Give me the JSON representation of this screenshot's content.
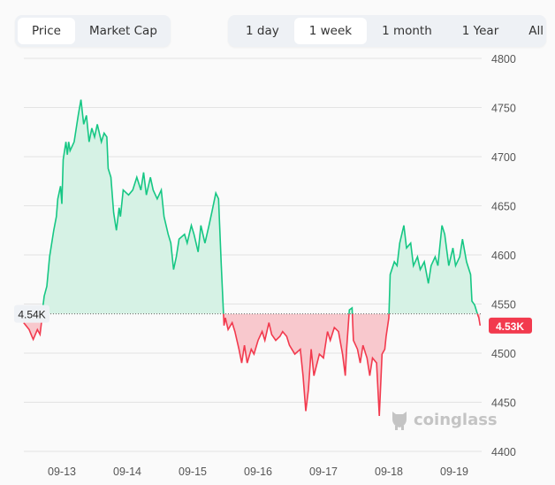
{
  "toggles": {
    "metric": [
      {
        "label": "Price",
        "active": true
      },
      {
        "label": "Market Cap",
        "active": false
      }
    ],
    "range": [
      {
        "label": "1 day",
        "active": false
      },
      {
        "label": "1 week",
        "active": true
      },
      {
        "label": "1 month",
        "active": false
      },
      {
        "label": "1 Year",
        "active": false
      },
      {
        "label": "All",
        "active": false
      }
    ]
  },
  "watermark": {
    "text": "coinglass",
    "icon": "coinglass-logo-icon"
  },
  "colors": {
    "up": "#16c784",
    "up_fill": "#d6f2e5",
    "down": "#f23a4e",
    "down_fill": "#f8c8cd",
    "grid": "#e3e3e3"
  },
  "chart_data": {
    "type": "area",
    "baseline": {
      "value": 4540,
      "label": "4.54K"
    },
    "current": {
      "value": 4528,
      "label": "4.53K"
    },
    "ylim": [
      4400,
      4800
    ],
    "yticks": [
      4400,
      4450,
      4500,
      4550,
      4600,
      4650,
      4700,
      4750,
      4800
    ],
    "xticks": [
      "09-13",
      "09-14",
      "09-15",
      "09-16",
      "09-17",
      "09-18",
      "09-19"
    ],
    "grid": true,
    "points": [
      [
        "09-12 10:00",
        4531
      ],
      [
        "09-12 12:00",
        4524
      ],
      [
        "09-12 13:00",
        4517
      ],
      [
        "09-12 13:30",
        4514
      ],
      [
        "09-12 15:00",
        4524
      ],
      [
        "09-12 16:00",
        4519
      ],
      [
        "09-12 16:30",
        4531
      ],
      [
        "09-12 17:00",
        4546
      ],
      [
        "09-12 17:30",
        4558
      ],
      [
        "09-12 18:30",
        4568
      ],
      [
        "09-12 19:30",
        4598
      ],
      [
        "09-12 21:00",
        4625
      ],
      [
        "09-12 22:00",
        4639
      ],
      [
        "09-12 22:30",
        4657
      ],
      [
        "09-12 23:30",
        4670
      ],
      [
        "09-13 00:00",
        4652
      ],
      [
        "09-13 00:30",
        4697
      ],
      [
        "09-13 01:30",
        4715
      ],
      [
        "09-13 02:00",
        4702
      ],
      [
        "09-13 02:30",
        4715
      ],
      [
        "09-13 03:00",
        4706
      ],
      [
        "09-13 04:30",
        4715
      ],
      [
        "09-13 06:00",
        4742
      ],
      [
        "09-13 07:00",
        4758
      ],
      [
        "09-13 08:00",
        4733
      ],
      [
        "09-13 09:00",
        4742
      ],
      [
        "09-13 10:00",
        4715
      ],
      [
        "09-13 11:00",
        4729
      ],
      [
        "09-13 12:00",
        4720
      ],
      [
        "09-13 13:00",
        4733
      ],
      [
        "09-13 14:30",
        4715
      ],
      [
        "09-13 15:30",
        4724
      ],
      [
        "09-13 16:30",
        4720
      ],
      [
        "09-13 17:00",
        4688
      ],
      [
        "09-13 18:00",
        4679
      ],
      [
        "09-13 19:00",
        4643
      ],
      [
        "09-13 20:00",
        4625
      ],
      [
        "09-13 21:00",
        4648
      ],
      [
        "09-13 21:30",
        4639
      ],
      [
        "09-13 22:30",
        4666
      ],
      [
        "09-14 00:30",
        4661
      ],
      [
        "09-14 02:00",
        4666
      ],
      [
        "09-14 03:30",
        4679
      ],
      [
        "09-14 05:00",
        4666
      ],
      [
        "09-14 06:00",
        4684
      ],
      [
        "09-14 07:00",
        4661
      ],
      [
        "09-14 08:30",
        4679
      ],
      [
        "09-14 09:30",
        4666
      ],
      [
        "09-14 11:00",
        4657
      ],
      [
        "09-14 12:30",
        4666
      ],
      [
        "09-14 13:30",
        4639
      ],
      [
        "09-14 15:00",
        4621
      ],
      [
        "09-14 16:00",
        4612
      ],
      [
        "09-14 17:00",
        4585
      ],
      [
        "09-14 18:00",
        4598
      ],
      [
        "09-14 19:00",
        4616
      ],
      [
        "09-14 21:00",
        4621
      ],
      [
        "09-14 22:00",
        4612
      ],
      [
        "09-14 23:30",
        4630
      ],
      [
        "09-15 00:30",
        4621
      ],
      [
        "09-15 02:00",
        4603
      ],
      [
        "09-15 03:00",
        4630
      ],
      [
        "09-15 04:30",
        4612
      ],
      [
        "09-15 06:00",
        4630
      ],
      [
        "09-15 07:00",
        4643
      ],
      [
        "09-15 08:30",
        4663
      ],
      [
        "09-15 09:30",
        4657
      ],
      [
        "09-15 10:30",
        4589
      ],
      [
        "09-15 11:30",
        4528
      ],
      [
        "09-15 12:00",
        4536
      ],
      [
        "09-15 13:00",
        4524
      ],
      [
        "09-15 14:30",
        4531
      ],
      [
        "09-15 15:30",
        4522
      ],
      [
        "09-15 17:00",
        4504
      ],
      [
        "09-15 18:00",
        4490
      ],
      [
        "09-15 19:00",
        4508
      ],
      [
        "09-15 20:00",
        4490
      ],
      [
        "09-15 21:30",
        4504
      ],
      [
        "09-15 22:30",
        4499
      ],
      [
        "09-16 00:00",
        4513
      ],
      [
        "09-16 01:30",
        4522
      ],
      [
        "09-16 02:30",
        4513
      ],
      [
        "09-16 04:00",
        4531
      ],
      [
        "09-16 05:00",
        4519
      ],
      [
        "09-16 06:30",
        4513
      ],
      [
        "09-16 08:00",
        4517
      ],
      [
        "09-16 09:00",
        4522
      ],
      [
        "09-16 10:30",
        4517
      ],
      [
        "09-16 11:30",
        4508
      ],
      [
        "09-16 13:30",
        4499
      ],
      [
        "09-16 15:30",
        4504
      ],
      [
        "09-16 16:30",
        4477
      ],
      [
        "09-16 17:30",
        4441
      ],
      [
        "09-16 18:30",
        4463
      ],
      [
        "09-16 19:30",
        4504
      ],
      [
        "09-16 20:30",
        4477
      ],
      [
        "09-16 21:30",
        4488
      ],
      [
        "09-16 22:30",
        4499
      ],
      [
        "09-17 00:00",
        4495
      ],
      [
        "09-17 01:30",
        4522
      ],
      [
        "09-17 02:30",
        4513
      ],
      [
        "09-17 04:00",
        4526
      ],
      [
        "09-17 05:30",
        4522
      ],
      [
        "09-17 07:00",
        4499
      ],
      [
        "09-17 08:00",
        4477
      ],
      [
        "09-17 08:30",
        4504
      ],
      [
        "09-17 09:30",
        4544
      ],
      [
        "09-17 10:30",
        4546
      ],
      [
        "09-17 11:00",
        4513
      ],
      [
        "09-17 12:30",
        4504
      ],
      [
        "09-17 13:30",
        4490
      ],
      [
        "09-17 14:30",
        4508
      ],
      [
        "09-17 16:00",
        4495
      ],
      [
        "09-17 17:00",
        4477
      ],
      [
        "09-17 18:00",
        4495
      ],
      [
        "09-17 19:30",
        4490
      ],
      [
        "09-17 20:30",
        4436
      ],
      [
        "09-17 21:30",
        4499
      ],
      [
        "09-17 22:30",
        4504
      ],
      [
        "09-17 23:00",
        4517
      ],
      [
        "09-18 00:00",
        4536
      ],
      [
        "09-18 00:30",
        4580
      ],
      [
        "09-18 02:00",
        4593
      ],
      [
        "09-18 03:00",
        4589
      ],
      [
        "09-18 04:00",
        4612
      ],
      [
        "09-18 05:30",
        4630
      ],
      [
        "09-18 06:30",
        4607
      ],
      [
        "09-18 08:00",
        4612
      ],
      [
        "09-18 09:00",
        4589
      ],
      [
        "09-18 10:30",
        4598
      ],
      [
        "09-18 11:30",
        4585
      ],
      [
        "09-18 13:00",
        4593
      ],
      [
        "09-18 14:30",
        4571
      ],
      [
        "09-18 15:30",
        4589
      ],
      [
        "09-18 17:00",
        4598
      ],
      [
        "09-18 18:00",
        4589
      ],
      [
        "09-18 19:30",
        4630
      ],
      [
        "09-18 20:30",
        4621
      ],
      [
        "09-18 22:00",
        4589
      ],
      [
        "09-18 23:30",
        4607
      ],
      [
        "09-19 00:30",
        4589
      ],
      [
        "09-19 02:00",
        4598
      ],
      [
        "09-19 03:00",
        4616
      ],
      [
        "09-19 04:30",
        4593
      ],
      [
        "09-19 06:00",
        4580
      ],
      [
        "09-19 06:30",
        4553
      ],
      [
        "09-19 07:30",
        4549
      ],
      [
        "09-19 08:30",
        4540
      ],
      [
        "09-19 09:00",
        4536
      ],
      [
        "09-19 09:30",
        4528
      ]
    ]
  }
}
